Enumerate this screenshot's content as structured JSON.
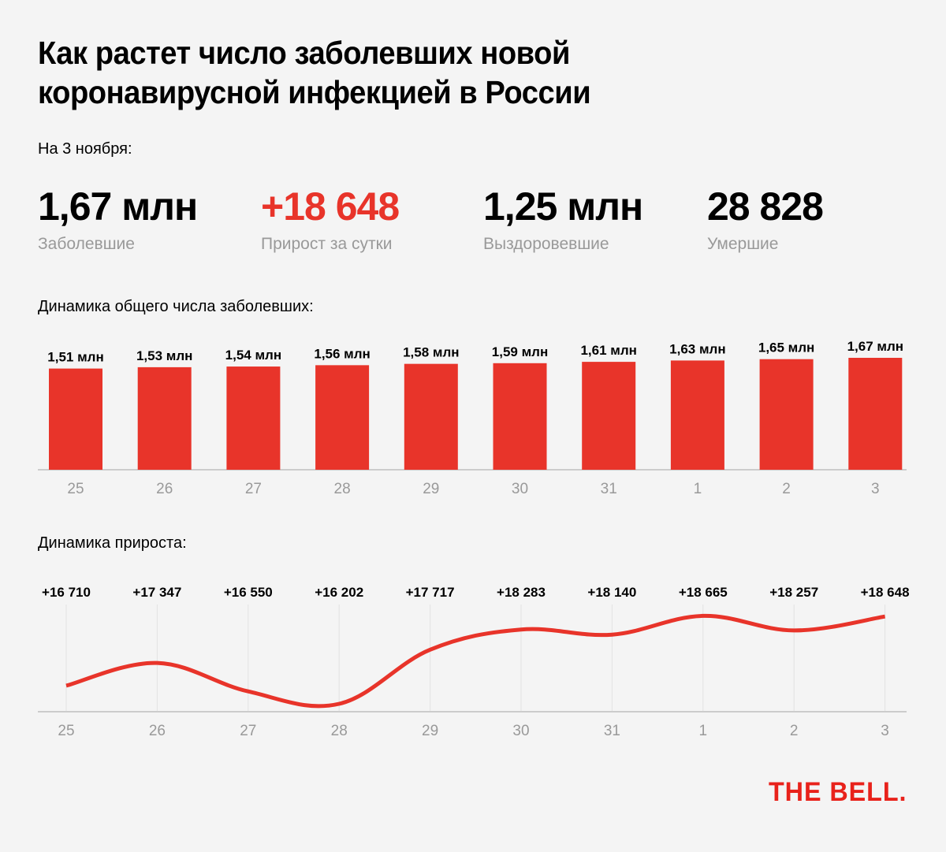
{
  "title": "Как растет число заболевших новой коронавирусной инфекцией в России",
  "date_label": "На 3 ноября:",
  "stats": [
    {
      "value": "1,67 млн",
      "label": "Заболевшие",
      "color": "#000000"
    },
    {
      "value": "+18 648",
      "label": "Прирост за сутки",
      "color": "#e8342a"
    },
    {
      "value": "1,25 млн",
      "label": "Выздоровевшие",
      "color": "#000000"
    },
    {
      "value": "28 828",
      "label": "Умершие",
      "color": "#000000"
    }
  ],
  "logo": "THE BELL.",
  "colors": {
    "accent": "#e8342a",
    "axis": "#cccccc",
    "tick": "#999999",
    "grid": "#e2e2e2"
  },
  "chart_data": [
    {
      "type": "bar",
      "title": "Динамика общего числа заболевших:",
      "categories": [
        "25",
        "26",
        "27",
        "28",
        "29",
        "30",
        "31",
        "1",
        "2",
        "3"
      ],
      "values": [
        1.51,
        1.53,
        1.54,
        1.56,
        1.58,
        1.59,
        1.61,
        1.63,
        1.65,
        1.67
      ],
      "labels": [
        "1,51 млн",
        "1,53 млн",
        "1,54 млн",
        "1,56 млн",
        "1,58 млн",
        "1,59 млн",
        "1,61 млн",
        "1,63 млн",
        "1,65 млн",
        "1,67 млн"
      ],
      "unit": "млн",
      "ylim": [
        0,
        1.67
      ],
      "grid": false
    },
    {
      "type": "line",
      "title": "Динамика прироста:",
      "categories": [
        "25",
        "26",
        "27",
        "28",
        "29",
        "30",
        "31",
        "1",
        "2",
        "3"
      ],
      "values": [
        16710,
        17347,
        16550,
        16202,
        17717,
        18283,
        18140,
        18665,
        18257,
        18648
      ],
      "labels": [
        "+16 710",
        "+17 347",
        "+16 550",
        "+16 202",
        "+17 717",
        "+18 283",
        "+18 140",
        "+18 665",
        "+18 257",
        "+18 648"
      ],
      "grid": "vertical"
    }
  ]
}
